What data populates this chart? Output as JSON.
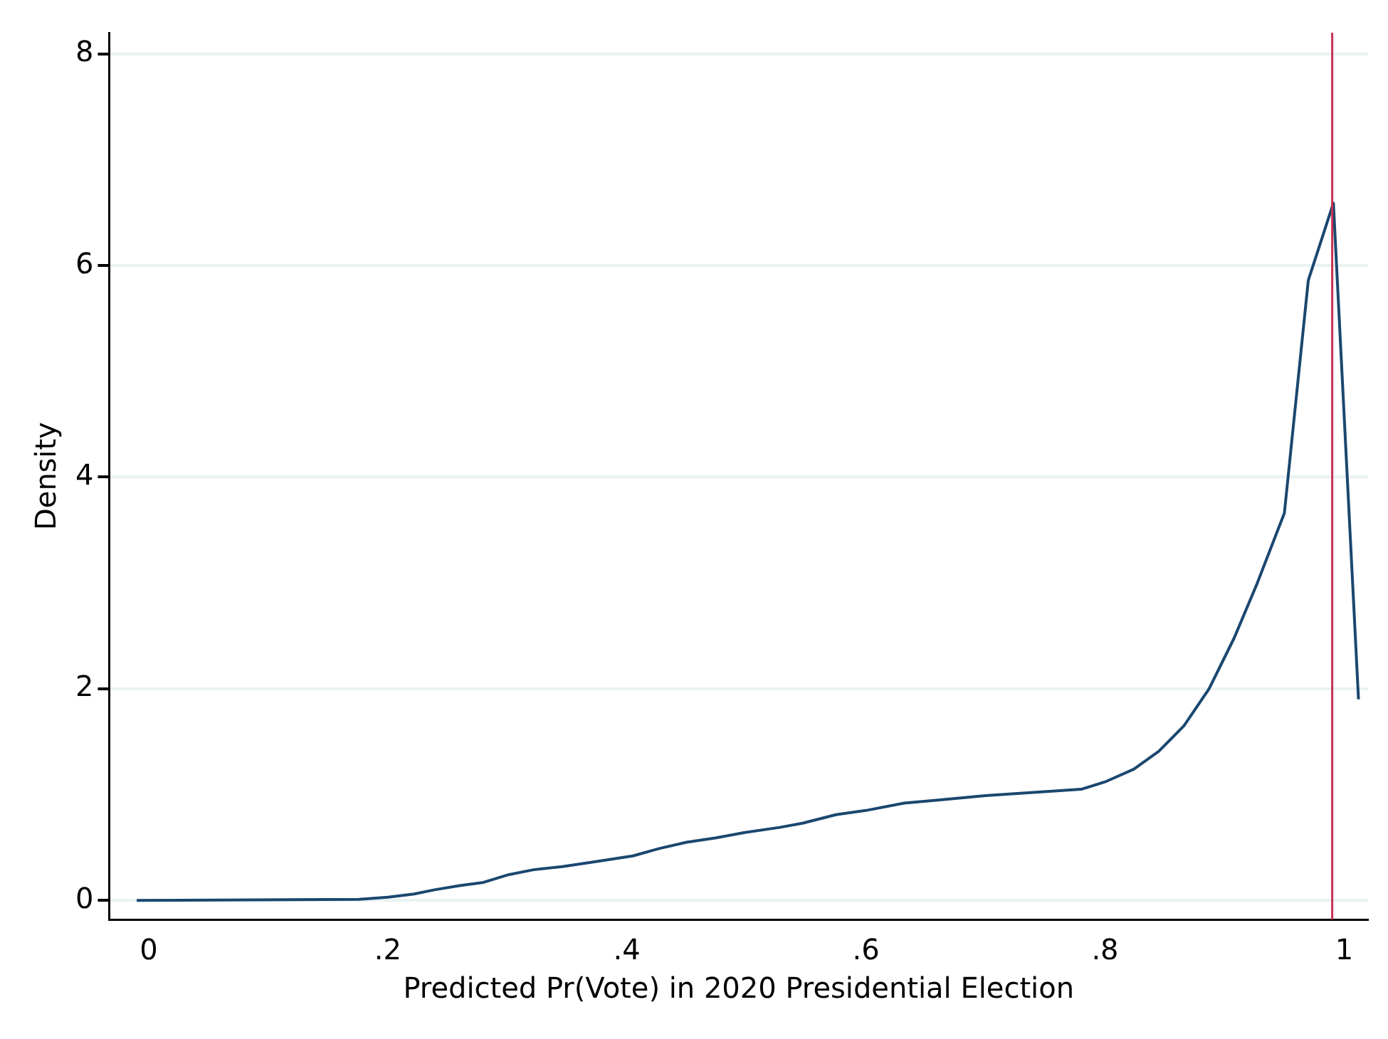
{
  "chart_data": {
    "type": "line",
    "xlabel": "Predicted Pr(Vote) in 2020 Presidential Election",
    "ylabel": "Density",
    "xlim": [
      -0.033,
      1.02
    ],
    "xticks": [
      {
        "value": 0,
        "label": "0"
      },
      {
        "value": 0.2,
        "label": ".2"
      },
      {
        "value": 0.4,
        "label": ".4"
      },
      {
        "value": 0.6,
        "label": ".6"
      },
      {
        "value": 0.8,
        "label": ".8"
      },
      {
        "value": 1,
        "label": "1"
      }
    ],
    "ylim": [
      -0.18,
      8.2
    ],
    "yticks": [
      0,
      2,
      4,
      6,
      8
    ],
    "grid": "y",
    "legend": false,
    "marker": "none",
    "line_style": "solid",
    "series": [
      {
        "color": "#1a476f",
        "x": [
          -0.01,
          0.176,
          0.2,
          0.222,
          0.239,
          0.26,
          0.28,
          0.3,
          0.322,
          0.346,
          0.37,
          0.405,
          0.427,
          0.45,
          0.474,
          0.498,
          0.528,
          0.547,
          0.575,
          0.6,
          0.632,
          0.662,
          0.7,
          0.74,
          0.78,
          0.8,
          0.824,
          0.845,
          0.866,
          0.887,
          0.908,
          0.927,
          0.95,
          0.97,
          0.991,
          1.012
        ],
        "values": [
          0,
          0.01,
          0.03,
          0.06,
          0.1,
          0.14,
          0.17,
          0.24,
          0.29,
          0.32,
          0.36,
          0.42,
          0.49,
          0.55,
          0.59,
          0.64,
          0.69,
          0.73,
          0.81,
          0.85,
          0.92,
          0.95,
          0.99,
          1.02,
          1.05,
          1.12,
          1.24,
          1.41,
          1.65,
          2.0,
          2.48,
          2.99,
          3.66,
          5.86,
          6.59,
          1.9
        ]
      }
    ],
    "ref_lines": [
      {
        "axis": "x",
        "value": 0.99,
        "color": "#c8304f"
      }
    ]
  }
}
